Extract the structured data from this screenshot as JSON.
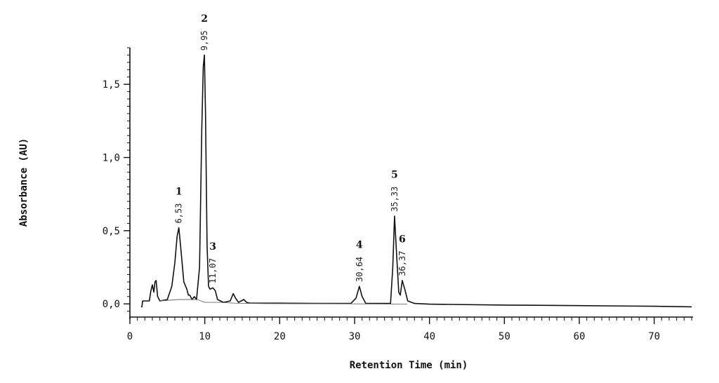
{
  "chart_data": {
    "type": "line",
    "xlabel": "Retention Time (min)",
    "ylabel": "Absorbance (AU)",
    "xlim": [
      0,
      75
    ],
    "ylim": [
      -0.09,
      1.75
    ],
    "x_ticks": [
      0,
      10,
      20,
      30,
      40,
      50,
      60,
      70
    ],
    "x_tick_labels": [
      "0",
      "10",
      "20",
      "30",
      "40",
      "50",
      "60",
      "70"
    ],
    "y_ticks": [
      0.0,
      0.5,
      1.0,
      1.5
    ],
    "y_tick_labels": [
      "0,0",
      "0,5",
      "1,0",
      "1,5"
    ],
    "grid": false,
    "series": [
      {
        "x": [
          1.5,
          1.6,
          1.7,
          2.6,
          2.8,
          3.0,
          3.2,
          3.35,
          3.5,
          3.7,
          4.0,
          5.0,
          5.6,
          6.0,
          6.3,
          6.53,
          6.8,
          7.2,
          7.6,
          7.8,
          8.0,
          8.3,
          8.6,
          8.9,
          9.3,
          9.6,
          9.8,
          9.95,
          10.1,
          10.3,
          10.5,
          10.7,
          11.07,
          11.4,
          11.7,
          12.5,
          13.4,
          13.8,
          14.1,
          14.5,
          15.2,
          15.6,
          16.0,
          18,
          20,
          25,
          29.5,
          30.2,
          30.64,
          31.0,
          31.5,
          33,
          34.8,
          35.1,
          35.33,
          35.6,
          35.9,
          36.1,
          36.37,
          36.7,
          37.1,
          38,
          40,
          50,
          60,
          70,
          75
        ],
        "values": [
          -0.02,
          -0.02,
          0.02,
          0.02,
          0.09,
          0.13,
          0.08,
          0.15,
          0.16,
          0.05,
          0.02,
          0.03,
          0.12,
          0.28,
          0.46,
          0.52,
          0.38,
          0.15,
          0.1,
          0.06,
          0.06,
          0.03,
          0.05,
          0.03,
          0.25,
          1.2,
          1.62,
          1.7,
          1.3,
          0.4,
          0.12,
          0.1,
          0.11,
          0.09,
          0.03,
          0.01,
          0.02,
          0.07,
          0.04,
          0.01,
          0.03,
          0.01,
          0.005,
          0.005,
          0.005,
          0.003,
          0.003,
          0.04,
          0.12,
          0.05,
          0.003,
          0.003,
          0.003,
          0.25,
          0.6,
          0.35,
          0.08,
          0.06,
          0.16,
          0.1,
          0.02,
          0.003,
          -0.002,
          -0.008,
          -0.012,
          -0.016,
          -0.02
        ]
      },
      {
        "x": [
          4.0,
          6.5,
          9.0,
          10.0,
          12.0,
          14.0,
          18.0,
          25.0,
          35.0,
          37.0
        ],
        "values": [
          0.02,
          0.03,
          0.03,
          0.01,
          0.01,
          0.005,
          0.002,
          0.001,
          -0.001,
          -0.002
        ]
      }
    ],
    "annotations": [
      {
        "peak": "1",
        "rt": "6,53",
        "x": 6.53,
        "y": 0.52
      },
      {
        "peak": "2",
        "rt": "9,95",
        "x": 9.95,
        "y": 1.7
      },
      {
        "peak": "3",
        "rt": "11,07",
        "x": 11.07,
        "y": 0.11
      },
      {
        "peak": "4",
        "rt": "30,64",
        "x": 30.64,
        "y": 0.12
      },
      {
        "peak": "5",
        "rt": "35,33",
        "x": 35.33,
        "y": 0.6
      },
      {
        "peak": "6",
        "rt": "36,37",
        "x": 36.37,
        "y": 0.16
      }
    ]
  }
}
